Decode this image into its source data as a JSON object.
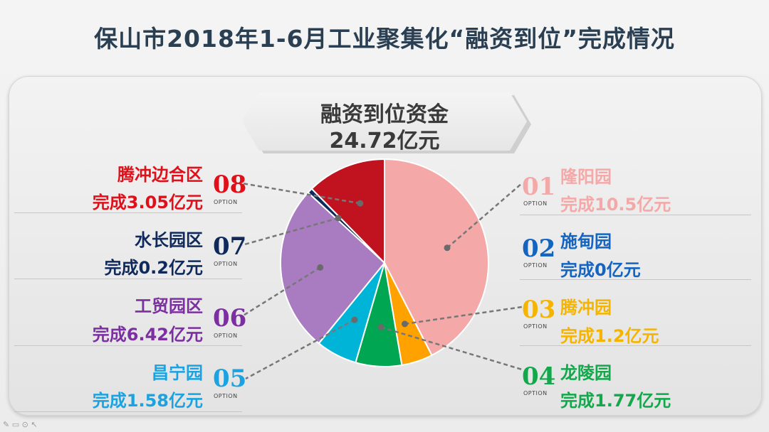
{
  "title": "保山市2018年1-6月工业聚集化“融资到位”完成情况",
  "banner": {
    "title": "融资到位资金",
    "total": "24.72亿元"
  },
  "option_label": "OPTION",
  "items": [
    {
      "num": "01",
      "name": "隆阳园",
      "text": "完成10.5亿元",
      "value": 10.5,
      "color": "#f4a9a8"
    },
    {
      "num": "02",
      "name": "施甸园",
      "text": "完成0亿元",
      "value": 0,
      "color": "#1565c0"
    },
    {
      "num": "03",
      "name": "腾冲园",
      "text": "完成1.2亿元",
      "value": 1.2,
      "color": "#ffa200"
    },
    {
      "num": "04",
      "name": "龙陵园",
      "text": "完成1.77亿元",
      "value": 1.77,
      "color": "#00a651"
    },
    {
      "num": "05",
      "name": "昌宁园",
      "text": "完成1.58亿元",
      "value": 1.58,
      "color": "#00b4d8"
    },
    {
      "num": "06",
      "name": "工贸园区",
      "text": "完成6.42亿元",
      "value": 6.42,
      "color": "#a97cc1"
    },
    {
      "num": "07",
      "name": "水长园区",
      "text": "完成0.2亿元",
      "value": 0.2,
      "color": "#0f2a5a"
    },
    {
      "num": "08",
      "name": "腾冲边合区",
      "text": "完成3.05亿元",
      "value": 3.05,
      "color": "#c1121f"
    }
  ],
  "label_colors": {
    "01": "#f4a9a8",
    "02": "#1565c0",
    "03": "#f5b400",
    "04": "#12a84b",
    "05": "#1aa3e0",
    "06": "#7b2fa0",
    "07": "#0f2a5a",
    "08": "#e0101a"
  },
  "toolbar_icons": [
    "pen-icon",
    "slide-icon",
    "zoom-icon",
    "pointer-icon"
  ],
  "chart_data": {
    "type": "pie",
    "title": "融资到位资金",
    "categories": [
      "隆阳园",
      "施甸园",
      "腾冲园",
      "龙陵园",
      "昌宁园",
      "工贸园区",
      "水长园区",
      "腾冲边合区"
    ],
    "values": [
      10.5,
      0,
      1.2,
      1.77,
      1.58,
      6.42,
      0.2,
      3.05
    ],
    "unit": "亿元"
  }
}
